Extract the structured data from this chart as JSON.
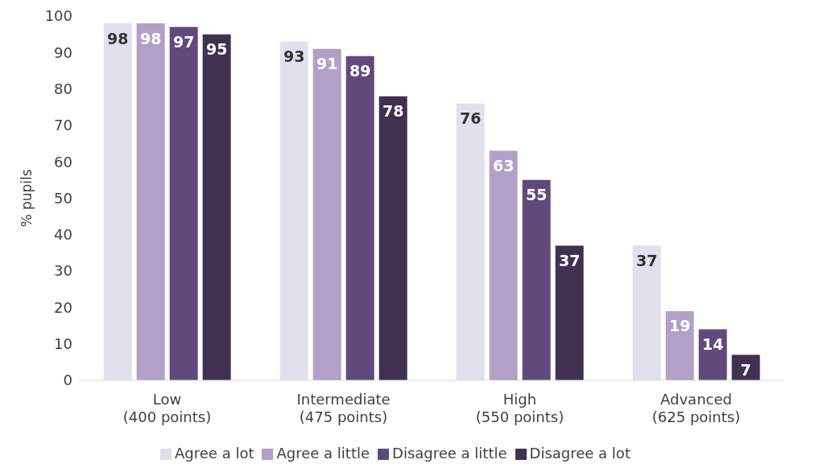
{
  "chart_data": {
    "type": "bar",
    "ylabel": "% pupils",
    "categories": [
      "Low\n(400 points)",
      "Intermediate\n(475 points)",
      "High\n(550 points)",
      "Advanced\n(625 points)"
    ],
    "series": [
      {
        "name": "Agree a lot",
        "color": "#e4dfec",
        "values": [
          98,
          93,
          76,
          37
        ]
      },
      {
        "name": "Agree a little",
        "color": "#b2a1c7",
        "values": [
          98,
          91,
          63,
          19
        ]
      },
      {
        "name": "Disagree a little",
        "color": "#604a7b",
        "values": [
          97,
          89,
          55,
          14
        ]
      },
      {
        "name": "Disagree a lot",
        "color": "#403151",
        "values": [
          95,
          78,
          37,
          7
        ]
      }
    ],
    "ylim": [
      0,
      100
    ],
    "yticks": [
      0,
      10,
      20,
      30,
      40,
      50,
      60,
      70,
      80,
      90,
      100
    ],
    "grid": false,
    "legend": "bottom",
    "data_labels": true
  }
}
